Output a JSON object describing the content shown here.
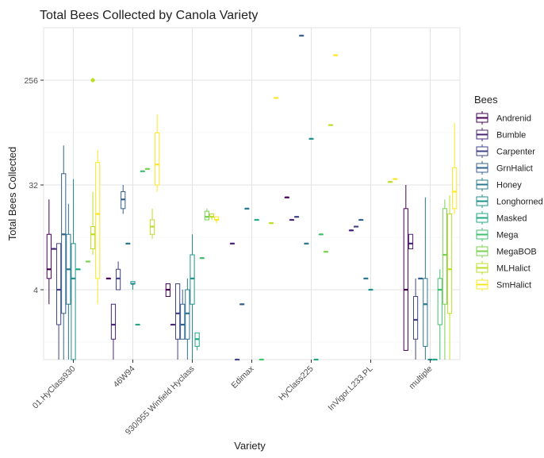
{
  "chart_data": {
    "type": "boxplot",
    "title": "Total Bees Collected by Canola Variety",
    "xlabel": "Variety",
    "ylabel": "Total Bees Collected",
    "y_scale": "log2",
    "y_ticks": [
      4,
      32,
      256
    ],
    "y_range": [
      1,
      724
    ],
    "grid": true,
    "legend_position": "right",
    "legend_title": "Bees",
    "categories": [
      "01.HyClass930",
      "46W94",
      "930/955 Winfield Hyclass",
      "Edimax",
      "HyClass225",
      "InVigor.L233.PL",
      "multiple"
    ],
    "series": [
      {
        "name": "Andrenid",
        "color": "#440154"
      },
      {
        "name": "Bumble",
        "color": "#482576"
      },
      {
        "name": "Carpenter",
        "color": "#414487"
      },
      {
        "name": "GrnHalict",
        "color": "#35608D"
      },
      {
        "name": "Honey",
        "color": "#2A788E"
      },
      {
        "name": "Longhorned",
        "color": "#21908C"
      },
      {
        "name": "Masked",
        "color": "#22A884"
      },
      {
        "name": "Mega",
        "color": "#43BF71"
      },
      {
        "name": "MegaBOB",
        "color": "#7AD151"
      },
      {
        "name": "MLHalict",
        "color": "#BBDF27"
      },
      {
        "name": "SmHalict",
        "color": "#FDE725"
      }
    ],
    "boxes": [
      {
        "category": "01.HyClass930",
        "series": "Andrenid",
        "min": 3,
        "q1": 5,
        "median": 6,
        "q3": 12,
        "max": 24,
        "outliers": []
      },
      {
        "category": "01.HyClass930",
        "series": "Bumble",
        "min": 9,
        "q1": 9,
        "median": 9,
        "q3": 9,
        "max": 9,
        "outliers": []
      },
      {
        "category": "01.HyClass930",
        "series": "Carpenter",
        "min": 1,
        "q1": 2,
        "median": 4,
        "q3": 10,
        "max": 10,
        "outliers": []
      },
      {
        "category": "01.HyClass930",
        "series": "GrnHalict",
        "min": 1,
        "q1": 2.5,
        "median": 12,
        "q3": 40,
        "max": 70,
        "outliers": []
      },
      {
        "category": "01.HyClass930",
        "series": "Honey",
        "min": 1,
        "q1": 3,
        "median": 6,
        "q3": 12,
        "max": 22,
        "outliers": []
      },
      {
        "category": "01.HyClass930",
        "series": "Longhorned",
        "min": 1,
        "q1": 1,
        "median": 5,
        "q3": 10,
        "max": 36,
        "outliers": []
      },
      {
        "category": "01.HyClass930",
        "series": "Masked",
        "min": 6,
        "q1": 6,
        "median": 6,
        "q3": 6,
        "max": 6,
        "outliers": []
      },
      {
        "category": "01.HyClass930",
        "series": "MegaBOB",
        "min": 7,
        "q1": 7,
        "median": 7,
        "q3": 7,
        "max": 7,
        "outliers": []
      },
      {
        "category": "01.HyClass930",
        "series": "MLHalict",
        "min": 8,
        "q1": 9,
        "median": 12,
        "q3": 14,
        "max": 28,
        "outliers": [
          256
        ]
      },
      {
        "category": "01.HyClass930",
        "series": "SmHalict",
        "min": 3,
        "q1": 5,
        "median": 18,
        "q3": 50,
        "max": 64,
        "outliers": []
      },
      {
        "category": "46W94",
        "series": "Andrenid",
        "min": 5,
        "q1": 5,
        "median": 5,
        "q3": 5,
        "max": 5,
        "outliers": []
      },
      {
        "category": "46W94",
        "series": "Bumble",
        "min": 1,
        "q1": 1.5,
        "median": 2,
        "q3": 3,
        "max": 3,
        "outliers": []
      },
      {
        "category": "46W94",
        "series": "Carpenter",
        "min": 4,
        "q1": 4,
        "median": 5,
        "q3": 6,
        "max": 7,
        "outliers": []
      },
      {
        "category": "46W94",
        "series": "GrnHalict",
        "min": 18,
        "q1": 20,
        "median": 24,
        "q3": 28,
        "max": 32,
        "outliers": []
      },
      {
        "category": "46W94",
        "series": "Honey",
        "min": 10,
        "q1": 10,
        "median": 10,
        "q3": 10,
        "max": 10,
        "outliers": []
      },
      {
        "category": "46W94",
        "series": "Longhorned",
        "min": 4,
        "q1": 4.5,
        "median": 4.5,
        "q3": 4.7,
        "max": 4.7,
        "outliers": []
      },
      {
        "category": "46W94",
        "series": "Masked",
        "min": 2,
        "q1": 2,
        "median": 2,
        "q3": 2,
        "max": 2,
        "outliers": []
      },
      {
        "category": "46W94",
        "series": "Mega",
        "min": 42,
        "q1": 42,
        "median": 42,
        "q3": 42,
        "max": 42,
        "outliers": []
      },
      {
        "category": "46W94",
        "series": "MegaBOB",
        "min": 44,
        "q1": 44,
        "median": 44,
        "q3": 44,
        "max": 44,
        "outliers": []
      },
      {
        "category": "46W94",
        "series": "MLHalict",
        "min": 11,
        "q1": 12,
        "median": 14,
        "q3": 16,
        "max": 20,
        "outliers": []
      },
      {
        "category": "46W94",
        "series": "SmHalict",
        "min": 28,
        "q1": 32,
        "median": 48,
        "q3": 90,
        "max": 130,
        "outliers": []
      },
      {
        "category": "930/955 Winfield Hyclass",
        "series": "Andrenid",
        "min": 3.5,
        "q1": 3.5,
        "median": 4,
        "q3": 4.5,
        "max": 4.5,
        "outliers": []
      },
      {
        "category": "930/955 Winfield Hyclass",
        "series": "Bumble",
        "min": 2,
        "q1": 2,
        "median": 2,
        "q3": 2,
        "max": 2,
        "outliers": []
      },
      {
        "category": "930/955 Winfield Hyclass",
        "series": "Carpenter",
        "min": 1,
        "q1": 1.5,
        "median": 2.5,
        "q3": 4.5,
        "max": 4.5,
        "outliers": []
      },
      {
        "category": "930/955 Winfield Hyclass",
        "series": "GrnHalict",
        "min": 1.5,
        "q1": 1.5,
        "median": 2,
        "q3": 3,
        "max": 4,
        "outliers": []
      },
      {
        "category": "930/955 Winfield Hyclass",
        "series": "Honey",
        "min": 1,
        "q1": 1.5,
        "median": 2.5,
        "q3": 4,
        "max": 5,
        "outliers": []
      },
      {
        "category": "930/955 Winfield Hyclass",
        "series": "Longhorned",
        "min": 1,
        "q1": 3,
        "median": 5,
        "q3": 8,
        "max": 12,
        "outliers": []
      },
      {
        "category": "930/955 Winfield Hyclass",
        "series": "Masked",
        "min": 1.2,
        "q1": 1.3,
        "median": 1.5,
        "q3": 1.7,
        "max": 1.7,
        "outliers": []
      },
      {
        "category": "930/955 Winfield Hyclass",
        "series": "Mega",
        "min": 7.5,
        "q1": 7.5,
        "median": 7.5,
        "q3": 7.5,
        "max": 7.5,
        "outliers": []
      },
      {
        "category": "930/955 Winfield Hyclass",
        "series": "MegaBOB",
        "min": 16,
        "q1": 16,
        "median": 17,
        "q3": 19,
        "max": 20,
        "outliers": []
      },
      {
        "category": "930/955 Winfield Hyclass",
        "series": "MLHalict",
        "min": 16,
        "q1": 17,
        "median": 17,
        "q3": 18,
        "max": 18,
        "outliers": []
      },
      {
        "category": "930/955 Winfield Hyclass",
        "series": "SmHalict",
        "min": 15,
        "q1": 16,
        "median": 16,
        "q3": 17,
        "max": 17,
        "outliers": []
      },
      {
        "category": "Edimax",
        "series": "Bumble",
        "min": 10,
        "q1": 10,
        "median": 10,
        "q3": 10,
        "max": 10,
        "outliers": []
      },
      {
        "category": "Edimax",
        "series": "Carpenter",
        "min": 1,
        "q1": 1,
        "median": 1,
        "q3": 1,
        "max": 1,
        "outliers": []
      },
      {
        "category": "Edimax",
        "series": "GrnHalict",
        "min": 3,
        "q1": 3,
        "median": 3,
        "q3": 3,
        "max": 3,
        "outliers": []
      },
      {
        "category": "Edimax",
        "series": "Honey",
        "min": 20,
        "q1": 20,
        "median": 20,
        "q3": 20,
        "max": 20,
        "outliers": []
      },
      {
        "category": "Edimax",
        "series": "Masked",
        "min": 16,
        "q1": 16,
        "median": 16,
        "q3": 16,
        "max": 16,
        "outliers": []
      },
      {
        "category": "Edimax",
        "series": "Mega",
        "min": 1,
        "q1": 1,
        "median": 1,
        "q3": 1,
        "max": 1,
        "outliers": []
      },
      {
        "category": "Edimax",
        "series": "MLHalict",
        "min": 15,
        "q1": 15,
        "median": 15,
        "q3": 15,
        "max": 15,
        "outliers": []
      },
      {
        "category": "Edimax",
        "series": "SmHalict",
        "min": 180,
        "q1": 180,
        "median": 180,
        "q3": 180,
        "max": 180,
        "outliers": []
      },
      {
        "category": "HyClass225",
        "series": "Andrenid",
        "min": 25,
        "q1": 25,
        "median": 25,
        "q3": 25,
        "max": 25,
        "outliers": []
      },
      {
        "category": "HyClass225",
        "series": "Bumble",
        "min": 16,
        "q1": 16,
        "median": 16,
        "q3": 16,
        "max": 16,
        "outliers": []
      },
      {
        "category": "HyClass225",
        "series": "Carpenter",
        "min": 17,
        "q1": 17,
        "median": 17,
        "q3": 17,
        "max": 17,
        "outliers": []
      },
      {
        "category": "HyClass225",
        "series": "GrnHalict",
        "min": 620,
        "q1": 620,
        "median": 620,
        "q3": 620,
        "max": 620,
        "outliers": []
      },
      {
        "category": "HyClass225",
        "series": "Honey",
        "min": 10,
        "q1": 10,
        "median": 10,
        "q3": 10,
        "max": 10,
        "outliers": []
      },
      {
        "category": "HyClass225",
        "series": "Longhorned",
        "min": 80,
        "q1": 80,
        "median": 80,
        "q3": 80,
        "max": 80,
        "outliers": []
      },
      {
        "category": "HyClass225",
        "series": "Masked",
        "min": 1,
        "q1": 1,
        "median": 1,
        "q3": 1,
        "max": 1,
        "outliers": []
      },
      {
        "category": "HyClass225",
        "series": "Mega",
        "min": 12,
        "q1": 12,
        "median": 12,
        "q3": 12,
        "max": 12,
        "outliers": []
      },
      {
        "category": "HyClass225",
        "series": "MegaBOB",
        "min": 8.5,
        "q1": 8.5,
        "median": 8.5,
        "q3": 8.5,
        "max": 8.5,
        "outliers": []
      },
      {
        "category": "HyClass225",
        "series": "MLHalict",
        "min": 105,
        "q1": 105,
        "median": 105,
        "q3": 105,
        "max": 105,
        "outliers": []
      },
      {
        "category": "HyClass225",
        "series": "SmHalict",
        "min": 420,
        "q1": 420,
        "median": 420,
        "q3": 420,
        "max": 420,
        "outliers": []
      },
      {
        "category": "InVigor.L233.PL",
        "series": "Bumble",
        "min": 13,
        "q1": 13,
        "median": 13,
        "q3": 13,
        "max": 13,
        "outliers": []
      },
      {
        "category": "InVigor.L233.PL",
        "series": "Carpenter",
        "min": 14,
        "q1": 14,
        "median": 14,
        "q3": 14,
        "max": 14,
        "outliers": []
      },
      {
        "category": "InVigor.L233.PL",
        "series": "GrnHalict",
        "min": 16,
        "q1": 16,
        "median": 16,
        "q3": 16,
        "max": 16,
        "outliers": []
      },
      {
        "category": "InVigor.L233.PL",
        "series": "Honey",
        "min": 5,
        "q1": 5,
        "median": 5,
        "q3": 5,
        "max": 5,
        "outliers": []
      },
      {
        "category": "InVigor.L233.PL",
        "series": "Longhorned",
        "min": 4,
        "q1": 4,
        "median": 4,
        "q3": 4,
        "max": 4,
        "outliers": []
      },
      {
        "category": "InVigor.L233.PL",
        "series": "MLHalict",
        "min": 34,
        "q1": 34,
        "median": 34,
        "q3": 34,
        "max": 34,
        "outliers": []
      },
      {
        "category": "InVigor.L233.PL",
        "series": "SmHalict",
        "min": 36,
        "q1": 36,
        "median": 36,
        "q3": 36,
        "max": 36,
        "outliers": []
      },
      {
        "category": "multiple",
        "series": "Andrenid",
        "min": 1.2,
        "q1": 1.2,
        "median": 4,
        "q3": 20,
        "max": 32,
        "outliers": []
      },
      {
        "category": "multiple",
        "series": "Bumble",
        "min": 9,
        "q1": 9,
        "median": 10,
        "q3": 12,
        "max": 12,
        "outliers": []
      },
      {
        "category": "multiple",
        "series": "Carpenter",
        "min": 1,
        "q1": 1.5,
        "median": 2.2,
        "q3": 3.5,
        "max": 5,
        "outliers": []
      },
      {
        "category": "multiple",
        "series": "GrnHalict",
        "min": 5,
        "q1": 5,
        "median": 5,
        "q3": 5,
        "max": 5,
        "outliers": []
      },
      {
        "category": "multiple",
        "series": "Honey",
        "min": 1,
        "q1": 1.3,
        "median": 3,
        "q3": 5,
        "max": 25,
        "outliers": []
      },
      {
        "category": "multiple",
        "series": "Longhorned",
        "min": 1,
        "q1": 1,
        "median": 1,
        "q3": 1,
        "max": 1,
        "outliers": []
      },
      {
        "category": "multiple",
        "series": "Masked",
        "min": 1,
        "q1": 1,
        "median": 1,
        "q3": 1,
        "max": 1,
        "outliers": []
      },
      {
        "category": "multiple",
        "series": "Mega",
        "min": 1,
        "q1": 2,
        "median": 4,
        "q3": 5,
        "max": 6,
        "outliers": []
      },
      {
        "category": "multiple",
        "series": "MegaBOB",
        "min": 1,
        "q1": 3,
        "median": 8,
        "q3": 20,
        "max": 24,
        "outliers": []
      },
      {
        "category": "multiple",
        "series": "MLHalict",
        "min": 1,
        "q1": 2.5,
        "median": 6,
        "q3": 18,
        "max": 26,
        "outliers": []
      },
      {
        "category": "multiple",
        "series": "SmHalict",
        "min": 18,
        "q1": 20,
        "median": 28,
        "q3": 45,
        "max": 110,
        "outliers": []
      }
    ]
  }
}
